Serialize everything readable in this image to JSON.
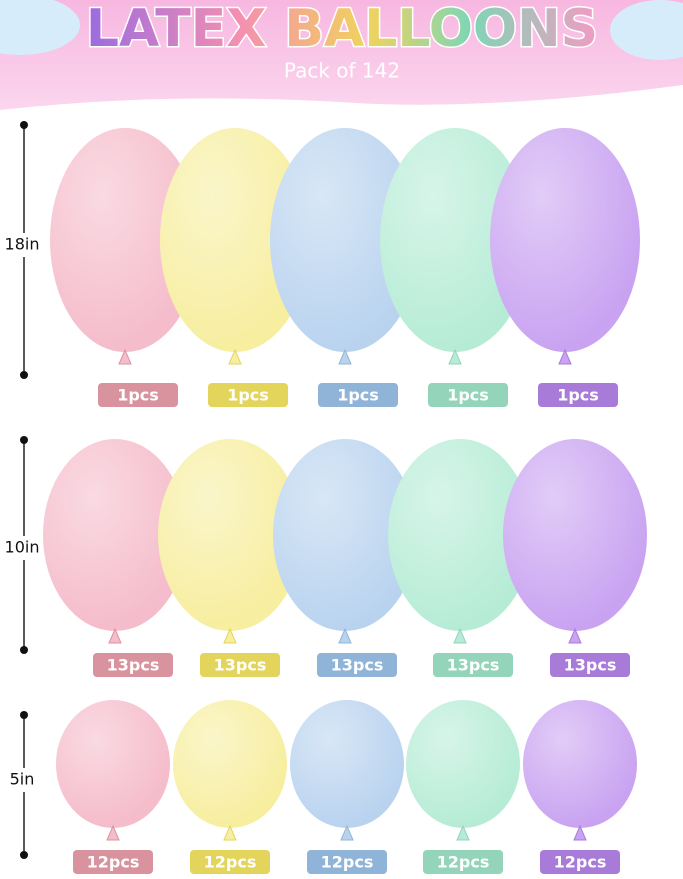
{
  "header": {
    "title": "LATEX BALLOONS",
    "subtitle": "Pack of 142"
  },
  "rows": [
    {
      "size": "18in",
      "counts": [
        "1pcs",
        "1pcs",
        "1pcs",
        "1pcs",
        "1pcs"
      ]
    },
    {
      "size": "10in",
      "counts": [
        "13pcs",
        "13pcs",
        "13pcs",
        "13pcs",
        "13pcs"
      ]
    },
    {
      "size": "5in",
      "counts": [
        "12pcs",
        "12pcs",
        "12pcs",
        "12pcs",
        "12pcs"
      ]
    }
  ]
}
